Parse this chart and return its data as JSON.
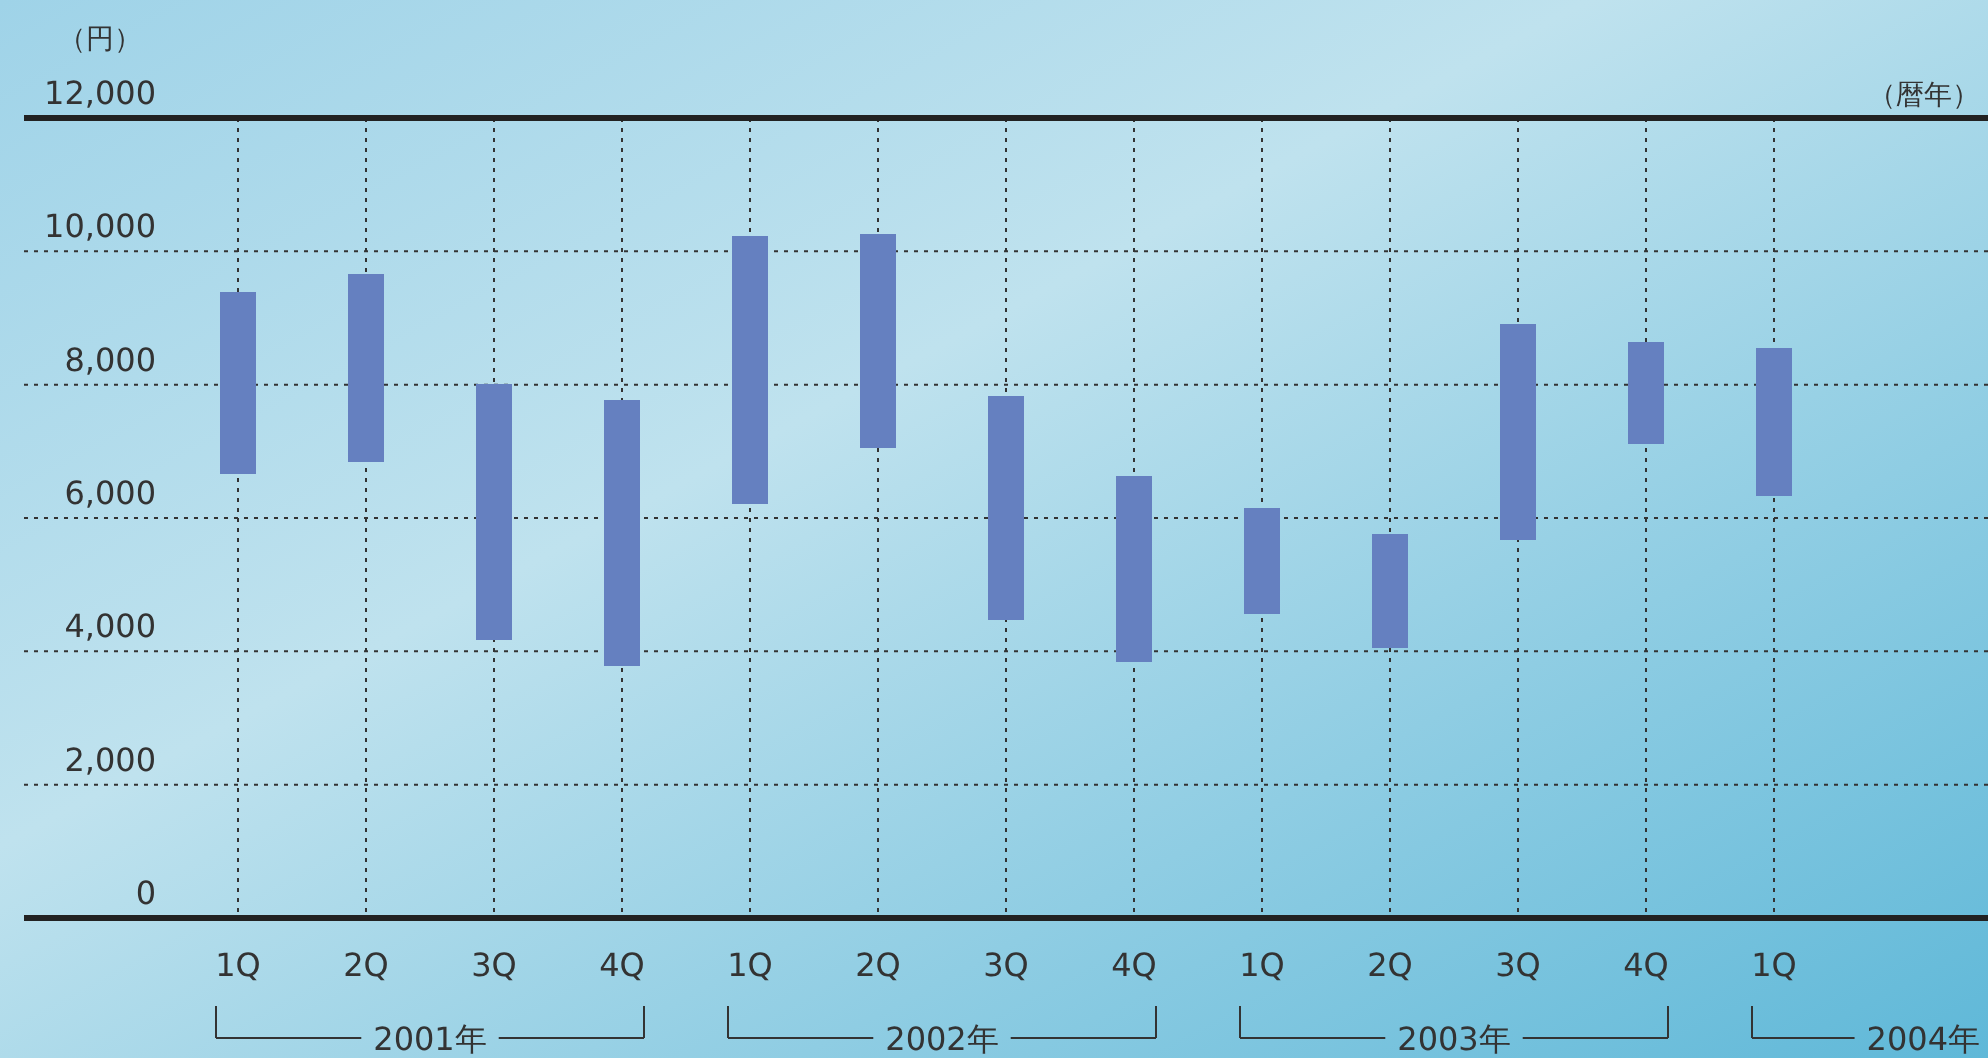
{
  "chart_data": {
    "type": "bar",
    "ylabel": "（円）",
    "xlabel": "（暦年）",
    "categories": [
      "1Q",
      "2Q",
      "3Q",
      "4Q",
      "1Q",
      "2Q",
      "3Q",
      "4Q",
      "1Q",
      "2Q",
      "3Q",
      "4Q",
      "1Q"
    ],
    "base": [
      6660,
      6840,
      4170,
      3780,
      6210,
      7050,
      4470,
      3840,
      4560,
      4050,
      5670,
      7110,
      6330
    ],
    "values": [
      2730,
      2820,
      3840,
      3990,
      4020,
      3210,
      3360,
      2790,
      1590,
      1710,
      3240,
      1530,
      2220
    ],
    "color": "#6580c0",
    "ylim": [
      0,
      12000
    ],
    "yticks": [
      0,
      {
        "value": 2000,
        "label": "2,000"
      },
      {
        "value": 4000,
        "label": "4,000"
      },
      {
        "value": 6000,
        "label": "6,000"
      },
      {
        "value": 8000,
        "label": "8,000"
      },
      {
        "value": 10000,
        "label": "10,000"
      },
      {
        "value": 12000,
        "label": "12,000"
      }
    ],
    "grid": true,
    "annotations": [
      "2001年",
      "2002年",
      "2003年",
      "2004年"
    ]
  }
}
